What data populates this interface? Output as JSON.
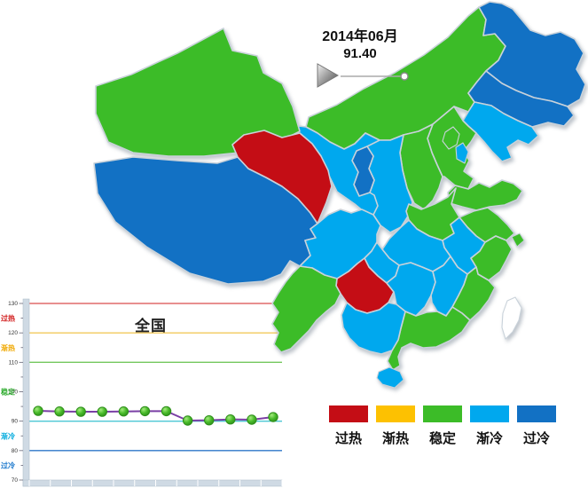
{
  "palette": {
    "overheat": "#c40d15",
    "warming": "#fdc101",
    "stable": "#3cbc28",
    "cooling": "#00a8ee",
    "overcool": "#1271c4",
    "nodata": "#ffffff"
  },
  "chart_data": [
    {
      "type": "heatmap",
      "subtype": "china-province-choropleth",
      "title": "2014年06月",
      "value": "91.40",
      "legend": [
        {
          "label": "过热",
          "category": "overheat"
        },
        {
          "label": "渐热",
          "category": "warming"
        },
        {
          "label": "稳定",
          "category": "stable"
        },
        {
          "label": "渐冷",
          "category": "cooling"
        },
        {
          "label": "过冷",
          "category": "overcool"
        }
      ],
      "regions": [
        {
          "region": "xinjiang",
          "category": "stable"
        },
        {
          "region": "xizang",
          "category": "overcool"
        },
        {
          "region": "qinghai",
          "category": "overheat"
        },
        {
          "region": "gansu",
          "category": "cooling"
        },
        {
          "region": "neimenggu",
          "category": "stable"
        },
        {
          "region": "heilongjiang",
          "category": "overcool"
        },
        {
          "region": "jilin",
          "category": "overcool"
        },
        {
          "region": "liaoning",
          "category": "cooling"
        },
        {
          "region": "beijing",
          "category": "stable"
        },
        {
          "region": "tianjin",
          "category": "cooling"
        },
        {
          "region": "hebei",
          "category": "stable"
        },
        {
          "region": "shanxi",
          "category": "stable"
        },
        {
          "region": "shaanxi",
          "category": "cooling"
        },
        {
          "region": "ningxia",
          "category": "overcool"
        },
        {
          "region": "shandong",
          "category": "stable"
        },
        {
          "region": "henan",
          "category": "stable"
        },
        {
          "region": "jiangsu",
          "category": "stable"
        },
        {
          "region": "shanghai",
          "category": "stable"
        },
        {
          "region": "anhui",
          "category": "cooling"
        },
        {
          "region": "zhejiang",
          "category": "stable"
        },
        {
          "region": "hubei",
          "category": "cooling"
        },
        {
          "region": "chongqing",
          "category": "cooling"
        },
        {
          "region": "sichuan",
          "category": "cooling"
        },
        {
          "region": "guizhou",
          "category": "overheat"
        },
        {
          "region": "yunnan",
          "category": "stable"
        },
        {
          "region": "hunan",
          "category": "cooling"
        },
        {
          "region": "jiangxi",
          "category": "cooling"
        },
        {
          "region": "fujian",
          "category": "stable"
        },
        {
          "region": "guangdong",
          "category": "stable"
        },
        {
          "region": "guangxi",
          "category": "cooling"
        },
        {
          "region": "hainan",
          "category": "cooling"
        },
        {
          "region": "taiwan",
          "category": "nodata"
        }
      ]
    },
    {
      "type": "line",
      "title": "全国",
      "ylim": [
        70,
        130
      ],
      "yticks": [
        130,
        120,
        110,
        100,
        90,
        80,
        70
      ],
      "x_count": 12,
      "values": [
        93.5,
        93.3,
        93.2,
        93.2,
        93.3,
        93.4,
        93.4,
        90.2,
        90.3,
        90.6,
        90.5,
        91.4
      ],
      "line_color": "#7a3fa5",
      "marker_stroke": "#2e8f1a",
      "zones": [
        {
          "label": "过热",
          "line_value": 130,
          "line_color": "#e06a6a",
          "label_color": "#d01515"
        },
        {
          "label": "渐热",
          "line_value": 120,
          "line_color": "#f2c95c",
          "label_color": "#f0a800"
        },
        {
          "label": "稳定",
          "line_value": 110,
          "line_color": "#74c85e",
          "label_color": "#2cab2c"
        },
        {
          "label": "渐冷",
          "line_value": 90,
          "line_color": "#4cc7d4",
          "label_color": "#00aadd"
        },
        {
          "label": "过冷",
          "line_value": 80,
          "line_color": "#2e77c8",
          "label_color": "#1a77cc"
        }
      ]
    }
  ]
}
